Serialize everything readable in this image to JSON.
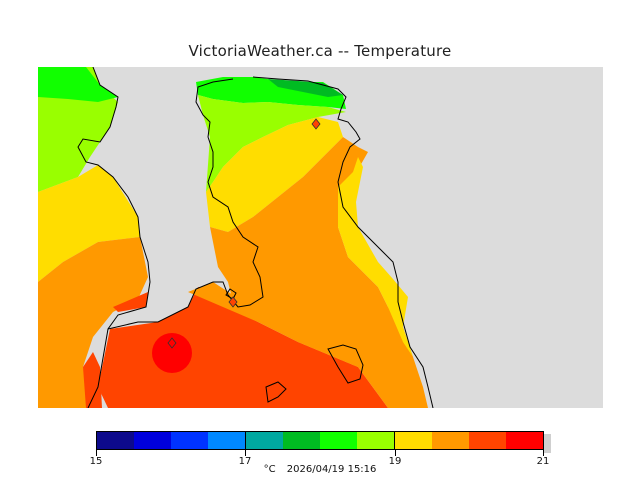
{
  "title": "VictoriaWeather.ca -- Temperature",
  "map": {
    "variable": "Temperature",
    "station_markers": 3
  },
  "legend": {
    "min": 15,
    "max": 21,
    "tick_labels": [
      "15",
      "17",
      "19",
      "21"
    ],
    "colors": [
      "#0d0a8c",
      "#0000dd",
      "#0033ff",
      "#0088ff",
      "#00a8a0",
      "#00bb22",
      "#11ff00",
      "#99ff00",
      "#ffdd00",
      "#ff9900",
      "#ff4400",
      "#ff0000"
    ],
    "unit": "°C",
    "datetime": "2026/04/19 15:16"
  },
  "colors": {
    "land_mask": "#dcdcdc",
    "coast": "#000000"
  }
}
